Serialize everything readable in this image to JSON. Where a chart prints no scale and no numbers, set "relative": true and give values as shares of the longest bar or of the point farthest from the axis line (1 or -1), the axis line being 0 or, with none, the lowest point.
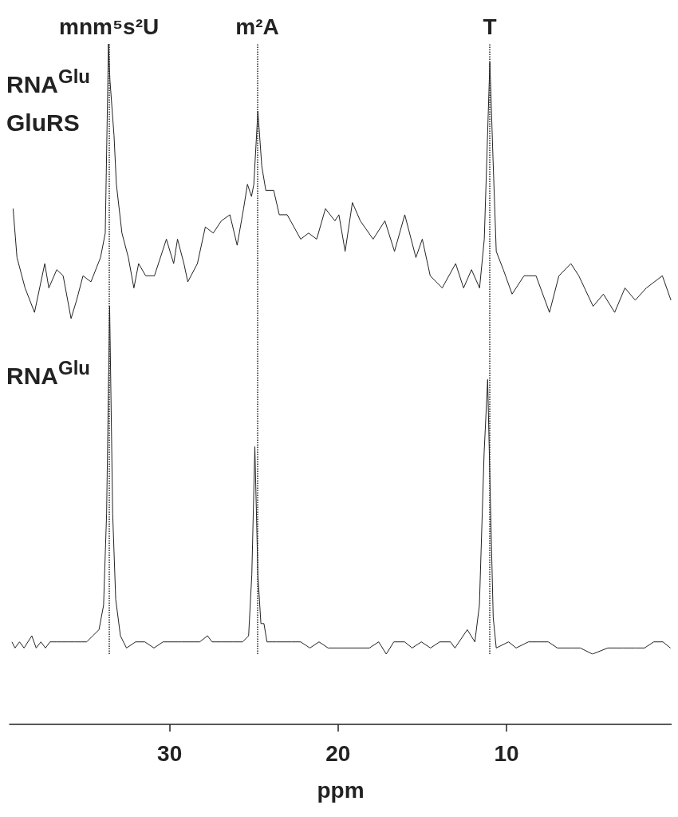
{
  "chart_data": {
    "type": "line",
    "relative": true,
    "xlim": [
      39.5,
      0.2
    ],
    "xticks": [
      30,
      20,
      10
    ],
    "tick_labels": "x",
    "xlabel": "ppm",
    "annotations": [
      "RNA$^{Glu}$",
      "GluRS",
      "RNA$^{Glu}$"
    ],
    "ref_lines": [
      {
        "axis": "x",
        "value": 33.6,
        "label": "mnm⁵s²U",
        "line_style": "dotted",
        "color": "#222222"
      },
      {
        "axis": "x",
        "value": 24.8,
        "label": "m²A",
        "line_style": "dotted",
        "color": "#222222"
      },
      {
        "axis": "x",
        "value": 10.99,
        "label": "T",
        "line_style": "dotted",
        "color": "#222222"
      }
    ],
    "series": [
      {
        "color": "#222222",
        "x": [
          39.29,
          39.06,
          38.58,
          38.02,
          37.41,
          37.17,
          36.7,
          36.32,
          35.85,
          35.52,
          35.14,
          34.67,
          34.1,
          33.82,
          33.63,
          33.54,
          33.3,
          33.16,
          32.83,
          32.45,
          32.12,
          31.84,
          31.42,
          30.9,
          30.19,
          29.76,
          29.53,
          29.15,
          28.92,
          28.35,
          27.88,
          27.41,
          26.93,
          26.42,
          25.99,
          25.61,
          25.38,
          25.14,
          25.0,
          24.76,
          24.53,
          24.29,
          23.82,
          23.49,
          23.02,
          22.22,
          21.75,
          21.27,
          20.75,
          20.19,
          19.95,
          19.58,
          19.15,
          18.68,
          17.92,
          17.22,
          16.65,
          16.04,
          15.38,
          15.0,
          14.53,
          13.82,
          13.02,
          12.55,
          12.08,
          11.6,
          11.32,
          10.99,
          10.8,
          10.61,
          10.19,
          9.67,
          8.96,
          8.25,
          7.45,
          6.89,
          6.18,
          5.71,
          4.86,
          4.25,
          3.58,
          2.97,
          2.36,
          1.7,
          0.75,
          0.24
        ],
        "values": [
          0.73,
          0.65,
          0.6,
          0.56,
          0.64,
          0.6,
          0.63,
          0.62,
          0.55,
          0.58,
          0.62,
          0.61,
          0.65,
          0.69,
          1.0,
          0.94,
          0.85,
          0.77,
          0.69,
          0.65,
          0.6,
          0.64,
          0.62,
          0.62,
          0.68,
          0.64,
          0.68,
          0.64,
          0.61,
          0.64,
          0.7,
          0.69,
          0.71,
          0.72,
          0.67,
          0.73,
          0.77,
          0.75,
          0.77,
          0.89,
          0.8,
          0.76,
          0.76,
          0.72,
          0.72,
          0.68,
          0.69,
          0.68,
          0.73,
          0.71,
          0.72,
          0.66,
          0.74,
          0.71,
          0.68,
          0.71,
          0.66,
          0.72,
          0.65,
          0.68,
          0.62,
          0.6,
          0.64,
          0.6,
          0.63,
          0.6,
          0.68,
          0.97,
          0.81,
          0.66,
          0.63,
          0.59,
          0.62,
          0.62,
          0.56,
          0.62,
          0.64,
          0.62,
          0.57,
          0.59,
          0.56,
          0.6,
          0.58,
          0.6,
          0.62,
          0.58
        ]
      },
      {
        "color": "#222222",
        "x": [
          39.36,
          39.18,
          38.91,
          38.64,
          38.18,
          37.92,
          37.64,
          37.37,
          37.1,
          36.74,
          36.37,
          36.01,
          35.65,
          35.28,
          34.92,
          34.56,
          34.19,
          33.92,
          33.74,
          33.56,
          33.38,
          33.2,
          32.92,
          32.56,
          32.02,
          31.47,
          30.93,
          30.39,
          29.84,
          29.3,
          28.75,
          28.21,
          27.75,
          27.48,
          26.94,
          26.21,
          25.67,
          25.31,
          25.12,
          24.94,
          24.76,
          24.58,
          24.4,
          24.22,
          23.67,
          23.31,
          22.76,
          22.22,
          21.67,
          21.13,
          20.59,
          19.95,
          18.86,
          18.14,
          17.59,
          17.14,
          16.69,
          16.05,
          15.6,
          15.06,
          14.51,
          13.97,
          13.33,
          13.06,
          12.33,
          11.88,
          11.61,
          11.33,
          11.12,
          10.94,
          10.79,
          10.61,
          9.88,
          9.43,
          8.7,
          8.16,
          7.52,
          6.98,
          6.16,
          5.62,
          4.9,
          3.99,
          3.08,
          2.35,
          1.81,
          1.26,
          0.72,
          0.27
        ],
        "values": [
          0.02,
          0.01,
          0.02,
          0.01,
          0.03,
          0.01,
          0.02,
          0.01,
          0.02,
          0.02,
          0.02,
          0.02,
          0.02,
          0.02,
          0.02,
          0.03,
          0.04,
          0.08,
          0.23,
          0.57,
          0.23,
          0.09,
          0.03,
          0.01,
          0.02,
          0.02,
          0.01,
          0.02,
          0.02,
          0.02,
          0.02,
          0.02,
          0.03,
          0.02,
          0.02,
          0.02,
          0.02,
          0.03,
          0.13,
          0.34,
          0.13,
          0.05,
          0.05,
          0.02,
          0.02,
          0.02,
          0.02,
          0.02,
          0.01,
          0.02,
          0.01,
          0.01,
          0.01,
          0.01,
          0.02,
          0.0,
          0.02,
          0.02,
          0.01,
          0.02,
          0.01,
          0.02,
          0.02,
          0.01,
          0.04,
          0.02,
          0.08,
          0.33,
          0.45,
          0.23,
          0.06,
          0.01,
          0.02,
          0.01,
          0.02,
          0.02,
          0.02,
          0.01,
          0.01,
          0.01,
          0.0,
          0.01,
          0.01,
          0.01,
          0.01,
          0.02,
          0.02,
          0.01
        ]
      }
    ]
  }
}
